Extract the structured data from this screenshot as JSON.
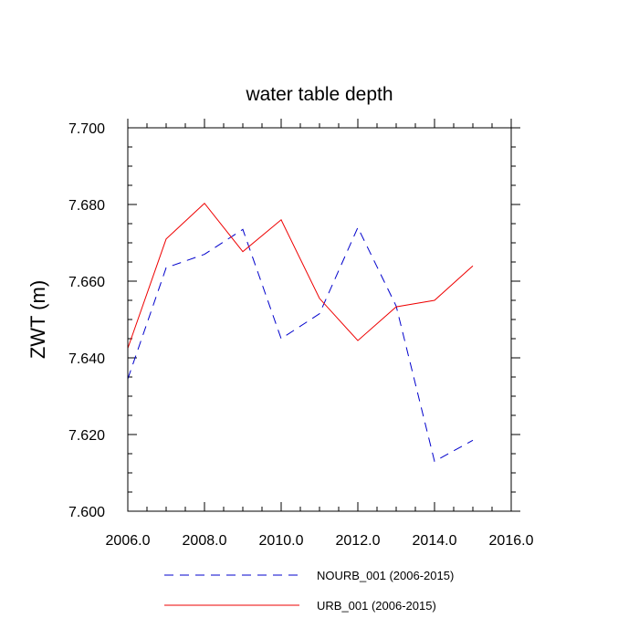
{
  "chart_data": {
    "type": "line",
    "title": "water table depth",
    "xlabel": "",
    "ylabel": "ZWT  (m)",
    "xlim": [
      2006,
      2016
    ],
    "ylim": [
      7.6,
      7.7
    ],
    "xticks": [
      2006,
      2008,
      2010,
      2012,
      2014,
      2016
    ],
    "xtick_labels": [
      "2006.0",
      "2008.0",
      "2010.0",
      "2012.0",
      "2014.0",
      "2016.0"
    ],
    "yticks": [
      7.6,
      7.62,
      7.64,
      7.66,
      7.68,
      7.7
    ],
    "ytick_labels": [
      "7.600",
      "7.620",
      "7.640",
      "7.660",
      "7.680",
      "7.700"
    ],
    "x": [
      2006,
      2007,
      2008,
      2009,
      2010,
      2011,
      2012,
      2013,
      2014,
      2015
    ],
    "series": [
      {
        "name": "NOURB_001 (2006-2015)",
        "style": "dashed",
        "color": "#0000cc",
        "values": [
          7.6345,
          7.6635,
          7.667,
          7.6735,
          7.645,
          7.6515,
          7.674,
          7.6535,
          7.613,
          7.6185
        ]
      },
      {
        "name": "URB_001 (2006-2015)",
        "style": "solid",
        "color": "#ee0000",
        "values": [
          7.6425,
          7.671,
          7.6803,
          7.6677,
          7.676,
          7.6555,
          7.6445,
          7.6533,
          7.655,
          7.664
        ]
      }
    ],
    "legend_position": "bottom",
    "grid": false
  }
}
